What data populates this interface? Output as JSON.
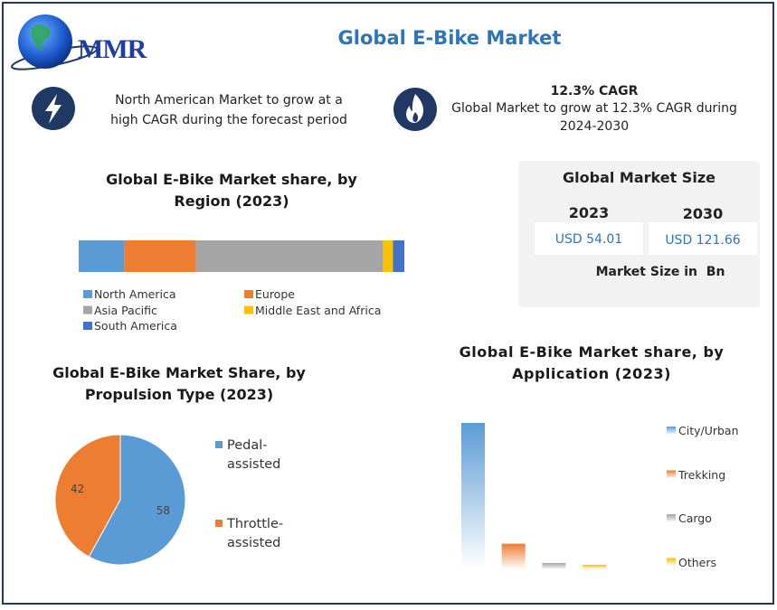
{
  "header": {
    "logo": "MMR",
    "title": "Global E-Bike Market"
  },
  "highlights": [
    {
      "text": "North American Market to grow at a high CAGR during the forecast period"
    },
    {
      "heading": "12.3% CAGR",
      "text": "Global Market to grow at 12.3% CAGR during 2024-2030"
    }
  ],
  "market_size": {
    "title": "Global Market Size",
    "years": [
      "2023",
      "2030"
    ],
    "values": [
      "USD 54.01",
      "USD 121.66"
    ],
    "note": "Market Size in  Bn"
  },
  "chart_data": [
    {
      "type": "bar",
      "orientation": "horizontal",
      "stacked": true,
      "title": "Global E-Bike Market share, by Region (2023)",
      "series": [
        {
          "name": "North America",
          "color": "#5b9bd5",
          "values": [
            14
          ]
        },
        {
          "name": "Europe",
          "color": "#ed7d31",
          "values": [
            22
          ]
        },
        {
          "name": "Asia Pacific",
          "color": "#a5a5a5",
          "values": [
            57.5
          ]
        },
        {
          "name": "Middle East and Africa",
          "color": "#ffc000",
          "values": [
            3
          ]
        },
        {
          "name": "South America",
          "color": "#4472c4",
          "values": [
            3.5
          ]
        }
      ]
    },
    {
      "type": "pie",
      "title": "Global E-Bike Market Share, by Propulsion Type (2023)",
      "categories": [
        "Pedal-assisted",
        "Throttle-assisted"
      ],
      "values": [
        58,
        42
      ],
      "colors": [
        "#5b9bd5",
        "#ed7d31"
      ]
    },
    {
      "type": "bar",
      "orientation": "vertical",
      "title": "Global E-Bike Market share, by Application (2023)",
      "categories": [
        "City/Urban",
        "Trekking",
        "Cargo",
        "Others"
      ],
      "values": [
        80,
        14,
        3.5,
        2.5
      ],
      "colors": [
        "#5b9bd5",
        "#ed7d31",
        "#a5a5a5",
        "#ffc000"
      ]
    }
  ]
}
